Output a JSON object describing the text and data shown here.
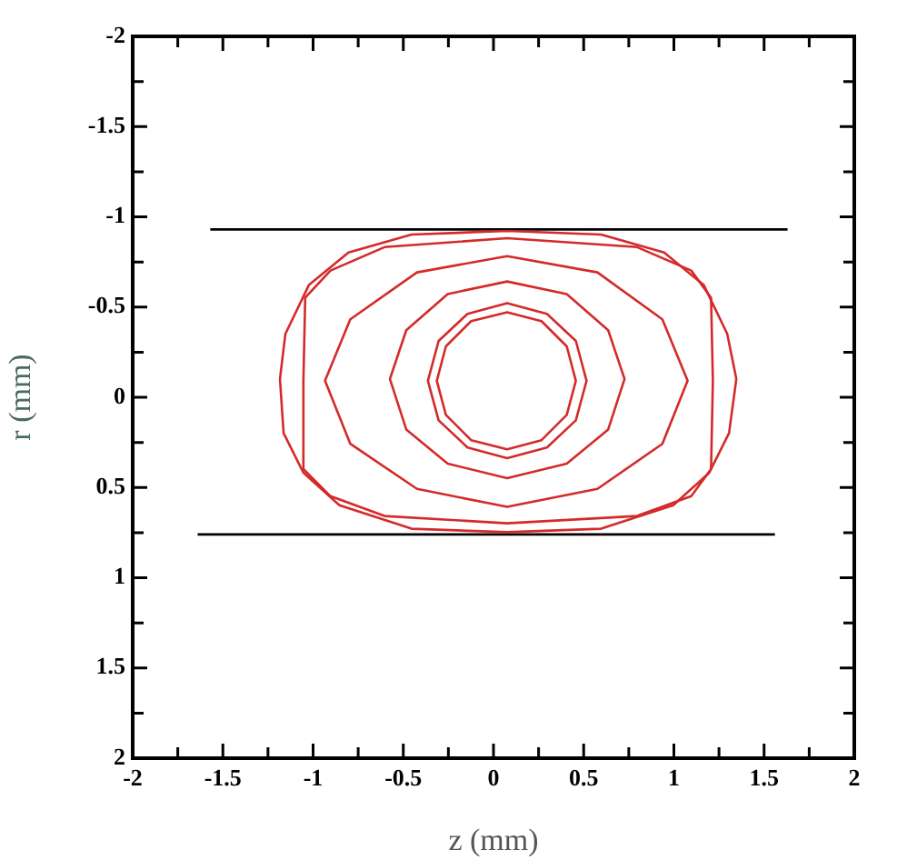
{
  "chart_data": {
    "type": "line",
    "xlabel": "z (mm)",
    "ylabel": "r (mm)",
    "xlim": [
      -2,
      2
    ],
    "ylim": [
      2,
      -2
    ],
    "xticks": [
      -2,
      {
        "value": -1.75,
        "label": null
      },
      -1.5,
      {
        "value": -1.25,
        "label": null
      },
      -1,
      {
        "value": -0.75,
        "label": null
      },
      -0.5,
      {
        "value": -0.25,
        "label": null
      },
      0,
      {
        "value": 0.25,
        "label": null
      },
      0.5,
      {
        "value": 0.75,
        "label": null
      },
      1,
      {
        "value": 1.25,
        "label": null
      },
      1.5,
      {
        "value": 1.75,
        "label": null
      },
      2
    ],
    "yticks": [
      -2,
      {
        "value": -1.75,
        "label": null
      },
      -1.5,
      {
        "value": -1.25,
        "label": null
      },
      -1,
      {
        "value": -0.75,
        "label": null
      },
      -0.5,
      {
        "value": -0.25,
        "label": null
      },
      0,
      {
        "value": 0.25,
        "label": null
      },
      0.5,
      {
        "value": 0.75,
        "label": null
      },
      1,
      {
        "value": 1.25,
        "label": null
      },
      1.5,
      {
        "value": 1.75,
        "label": null
      },
      2
    ],
    "grid": false,
    "legend": false,
    "marker": "none",
    "line_style": "solid",
    "series": [
      {
        "color": "#000000",
        "x": [
          -1.57,
          1.63
        ],
        "values": [
          -0.93,
          -0.93
        ]
      },
      {
        "color": "#000000",
        "x": [
          -1.64,
          1.56
        ],
        "values": [
          0.76,
          0.76
        ]
      }
    ]
  }
}
